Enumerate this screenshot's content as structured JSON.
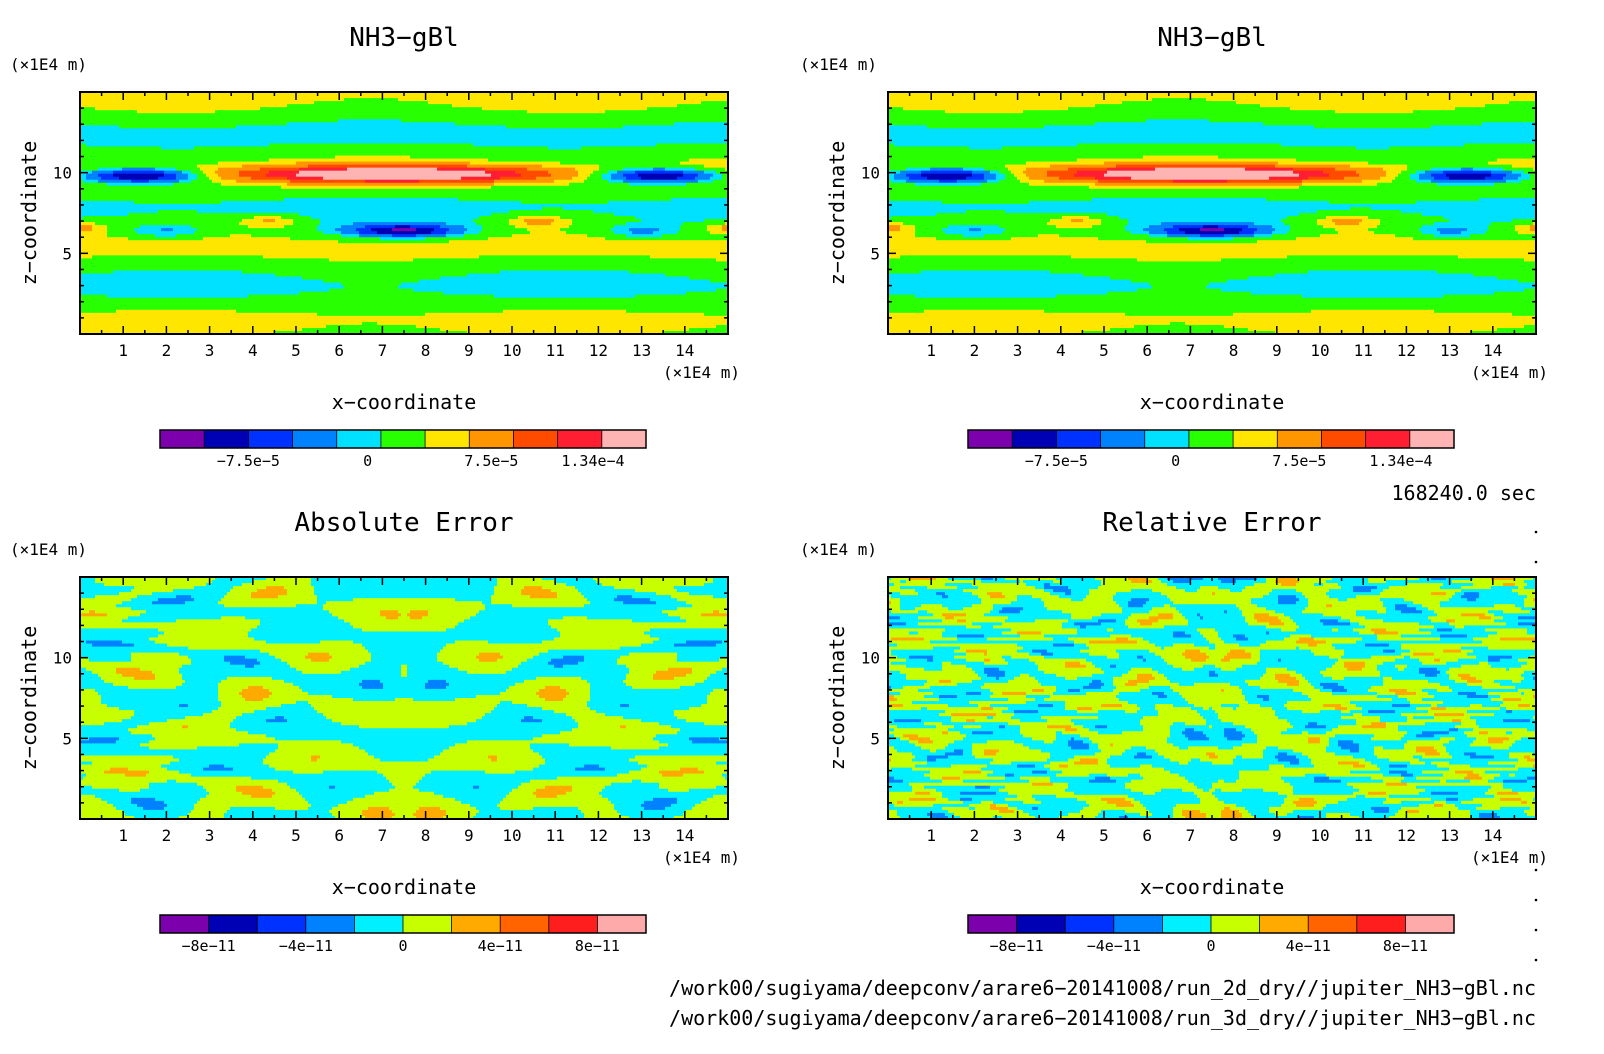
{
  "colors": {
    "scale_nh3": [
      "#7d00ad",
      "#0000b4",
      "#0032ff",
      "#0082ff",
      "#00e1ff",
      "#28ff00",
      "#ffe600",
      "#ff9600",
      "#ff4b00",
      "#ff1e32",
      "#ffb4b4"
    ],
    "scale_err": [
      "#7d00ad",
      "#0000b4",
      "#0032ff",
      "#0082ff",
      "#00f0ff",
      "#c8ff00",
      "#ffaa00",
      "#ff6400",
      "#ff1e1e",
      "#ffaaaa"
    ]
  },
  "panels": [
    {
      "title": "NH3−gBl",
      "y_unit": "(×1E4 m)",
      "x_unit": "(×1E4 m)",
      "xlabel": "x−coordinate",
      "ylabel": "z−coordinate",
      "x_ticks": [
        "1",
        "2",
        "3",
        "4",
        "5",
        "6",
        "7",
        "8",
        "9",
        "10",
        "11",
        "12",
        "13",
        "14"
      ],
      "y_ticks": [
        "5",
        "10"
      ],
      "colorbar_ticks": [
        "−7.5e−5",
        "0",
        "7.5e−5",
        "1.34e−4"
      ],
      "field": "nh3"
    },
    {
      "title": "NH3−gBl",
      "y_unit": "(×1E4 m)",
      "x_unit": "(×1E4 m)",
      "xlabel": "x−coordinate",
      "ylabel": "z−coordinate",
      "x_ticks": [
        "1",
        "2",
        "3",
        "4",
        "5",
        "6",
        "7",
        "8",
        "9",
        "10",
        "11",
        "12",
        "13",
        "14"
      ],
      "y_ticks": [
        "5",
        "10"
      ],
      "colorbar_ticks": [
        "−7.5e−5",
        "0",
        "7.5e−5",
        "1.34e−4"
      ],
      "field": "nh3"
    },
    {
      "title": "Absolute Error",
      "y_unit": "(×1E4 m)",
      "x_unit": "(×1E4 m)",
      "xlabel": "x−coordinate",
      "ylabel": "z−coordinate",
      "x_ticks": [
        "1",
        "2",
        "3",
        "4",
        "5",
        "6",
        "7",
        "8",
        "9",
        "10",
        "11",
        "12",
        "13",
        "14"
      ],
      "y_ticks": [
        "5",
        "10"
      ],
      "colorbar_ticks": [
        "−8e−11",
        "−4e−11",
        "0",
        "4e−11",
        "8e−11"
      ],
      "field": "abs"
    },
    {
      "title": "Relative Error",
      "y_unit": "(×1E4 m)",
      "x_unit": "(×1E4 m)",
      "xlabel": "x−coordinate",
      "ylabel": "z−coordinate",
      "x_ticks": [
        "1",
        "2",
        "3",
        "4",
        "5",
        "6",
        "7",
        "8",
        "9",
        "10",
        "11",
        "12",
        "13",
        "14"
      ],
      "y_ticks": [
        "5",
        "10"
      ],
      "colorbar_ticks": [
        "−8e−11",
        "−4e−11",
        "0",
        "4e−11",
        "8e−11"
      ],
      "field": "rel"
    }
  ],
  "time_label": "168240.0 sec",
  "footer_lines": [
    "/work00/sugiyama/deepconv/arare6−20141008/run_2d_dry//jupiter_NH3−gBl.nc",
    "/work00/sugiyama/deepconv/arare6−20141008/run_3d_dry//jupiter_NH3−gBl.nc"
  ],
  "chart_data": [
    {
      "type": "heatmap",
      "title": "NH3−gBl",
      "xlabel": "x−coordinate",
      "ylabel": "z−coordinate",
      "x_unit": "(×1E4 m)",
      "y_unit": "(×1E4 m)",
      "xlim": [
        0,
        15
      ],
      "ylim": [
        0,
        15
      ],
      "x_ticks": [
        1,
        2,
        3,
        4,
        5,
        6,
        7,
        8,
        9,
        10,
        11,
        12,
        13,
        14
      ],
      "y_ticks": [
        5,
        10
      ],
      "color_levels": [
        -0.0001125,
        -0.0001,
        -7.5e-05,
        -5e-05,
        -2.5e-05,
        0,
        2.5e-05,
        5e-05,
        7.5e-05,
        0.0001,
        0.000134
      ],
      "colorbar_labels": [
        "−7.5e−5",
        "0",
        "7.5e−5",
        "1.34e−4"
      ],
      "features": [
        {
          "desc": "positive maximum band",
          "x_center": 7.3,
          "z_center": 9.9,
          "peak": 0.000134
        },
        {
          "desc": "negative band left",
          "x_center": 1.5,
          "z_center": 9.8,
          "peak": -0.00011
        },
        {
          "desc": "negative band right",
          "x_center": 13.3,
          "z_center": 9.8,
          "peak": -0.00011
        },
        {
          "desc": "negative band",
          "x_center": 7.5,
          "z_center": 6.4,
          "peak": -0.0001
        }
      ]
    },
    {
      "type": "heatmap",
      "title": "NH3−gBl",
      "xlabel": "x−coordinate",
      "ylabel": "z−coordinate",
      "xlim": [
        0,
        15
      ],
      "ylim": [
        0,
        15
      ],
      "x_ticks": [
        1,
        2,
        3,
        4,
        5,
        6,
        7,
        8,
        9,
        10,
        11,
        12,
        13,
        14
      ],
      "y_ticks": [
        5,
        10
      ],
      "color_levels": [
        -0.0001125,
        -0.0001,
        -7.5e-05,
        -5e-05,
        -2.5e-05,
        0,
        2.5e-05,
        5e-05,
        7.5e-05,
        0.0001,
        0.000134
      ],
      "colorbar_labels": [
        "−7.5e−5",
        "0",
        "7.5e−5",
        "1.34e−4"
      ]
    },
    {
      "type": "heatmap",
      "title": "Absolute Error",
      "xlabel": "x−coordinate",
      "ylabel": "z−coordinate",
      "xlim": [
        0,
        15
      ],
      "ylim": [
        0,
        15
      ],
      "color_levels": [
        -1e-10,
        -8e-11,
        -6e-11,
        -4e-11,
        -2e-11,
        0,
        2e-11,
        4e-11,
        6e-11,
        8e-11,
        1e-10
      ],
      "colorbar_labels": [
        "−8e−11",
        "−4e−11",
        "0",
        "4e−11",
        "8e−11"
      ],
      "value_range_shown": [
        -2e-11,
        2e-11
      ]
    },
    {
      "type": "heatmap",
      "title": "Relative Error",
      "xlabel": "x−coordinate",
      "ylabel": "z−coordinate",
      "xlim": [
        0,
        15
      ],
      "ylim": [
        0,
        15
      ],
      "color_levels": [
        -1e-10,
        -8e-11,
        -6e-11,
        -4e-11,
        -2e-11,
        0,
        2e-11,
        4e-11,
        6e-11,
        8e-11,
        1e-10
      ],
      "colorbar_labels": [
        "−8e−11",
        "−4e−11",
        "0",
        "4e−11",
        "8e−11"
      ],
      "value_range_shown": [
        -2e-11,
        2e-11
      ]
    }
  ]
}
